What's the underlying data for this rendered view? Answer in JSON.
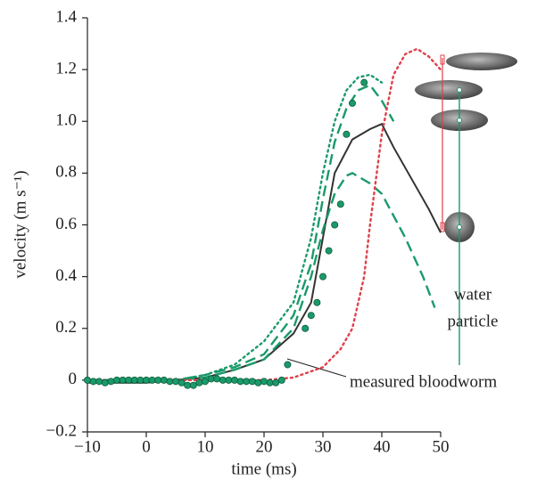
{
  "chart_data": {
    "type": "line",
    "xlabel": "time (ms)",
    "ylabel": "velocity (m s⁻¹)",
    "xlim": [
      -10,
      50
    ],
    "xticks": [
      {
        "value": -10,
        "label": "−10"
      },
      0,
      10,
      20,
      30,
      40,
      50
    ],
    "ylim": [
      -0.2,
      1.4
    ],
    "yticks": [
      {
        "value": -0.2,
        "label": "−0.2"
      },
      0,
      0.2,
      0.4,
      0.6,
      0.8,
      {
        "value": 1,
        "label": "1.0"
      },
      1.2,
      1.4
    ],
    "series": [
      {
        "style": "solid",
        "color": "#333333",
        "x": [
          -10,
          0,
          5,
          10,
          15,
          20,
          25,
          28,
          30,
          32,
          35,
          38,
          40,
          42,
          45,
          48,
          50
        ],
        "values": [
          -0.01,
          -0.01,
          0,
          0.01,
          0.04,
          0.08,
          0.18,
          0.3,
          0.55,
          0.8,
          0.93,
          0.97,
          0.99,
          0.9,
          0.78,
          0.66,
          0.57
        ]
      },
      {
        "style": "dotted",
        "color": "#1a9a6a",
        "x": [
          -10,
          5,
          10,
          15,
          20,
          25,
          28,
          30,
          32,
          34,
          36,
          38,
          40
        ],
        "values": [
          0,
          0,
          0.02,
          0.06,
          0.15,
          0.3,
          0.55,
          0.8,
          1.0,
          1.12,
          1.17,
          1.18,
          1.15
        ]
      },
      {
        "style": "dashed",
        "color": "#1a9a6a",
        "x": [
          -10,
          5,
          10,
          15,
          20,
          25,
          28,
          30,
          32,
          34,
          36,
          38,
          40,
          42
        ],
        "values": [
          0,
          0,
          0.02,
          0.05,
          0.1,
          0.25,
          0.45,
          0.7,
          0.92,
          1.05,
          1.12,
          1.14,
          1.08,
          1.0
        ]
      },
      {
        "style": "dashed",
        "color": "#1a9a6a",
        "x": [
          -10,
          5,
          10,
          15,
          20,
          25,
          28,
          30,
          32,
          34,
          35,
          38,
          40,
          44,
          47,
          49
        ],
        "values": [
          0,
          0,
          0.01,
          0.04,
          0.08,
          0.2,
          0.4,
          0.58,
          0.72,
          0.79,
          0.8,
          0.76,
          0.72,
          0.55,
          0.4,
          0.28
        ]
      },
      {
        "style": "dotted",
        "color": "#e0404a",
        "x": [
          -10,
          20,
          25,
          30,
          33,
          35,
          37,
          38,
          40,
          42,
          44,
          46,
          48,
          50
        ],
        "values": [
          0,
          0,
          0.01,
          0.05,
          0.12,
          0.2,
          0.4,
          0.6,
          0.95,
          1.18,
          1.26,
          1.28,
          1.25,
          1.2
        ]
      }
    ],
    "points": {
      "color": "#1a9a6a",
      "x": [
        -10,
        -9,
        -8,
        -7,
        -6,
        -5,
        -4,
        -3,
        -2,
        -1,
        0,
        1,
        2,
        3,
        4,
        5,
        6,
        7,
        8,
        9,
        10,
        11,
        12,
        13,
        14,
        15,
        16,
        17,
        18,
        19,
        20,
        21,
        22,
        23,
        24,
        27,
        28,
        29,
        30,
        31,
        32,
        33,
        34,
        35,
        37
      ],
      "values": [
        0,
        -0.005,
        -0.005,
        -0.01,
        -0.005,
        0,
        0,
        0,
        0,
        0,
        0,
        0,
        0,
        0,
        -0.005,
        -0.005,
        -0.01,
        -0.02,
        -0.02,
        -0.01,
        -0.005,
        0.005,
        0.005,
        0,
        0,
        0,
        -0.005,
        -0.005,
        -0.005,
        -0.01,
        -0.005,
        -0.01,
        -0.01,
        0,
        0.06,
        0.2,
        0.25,
        0.3,
        0.4,
        0.5,
        0.6,
        0.68,
        0.95,
        1.07,
        1.15
      ]
    },
    "annotations": [
      "measured bloodworm",
      "water",
      "particle"
    ]
  }
}
